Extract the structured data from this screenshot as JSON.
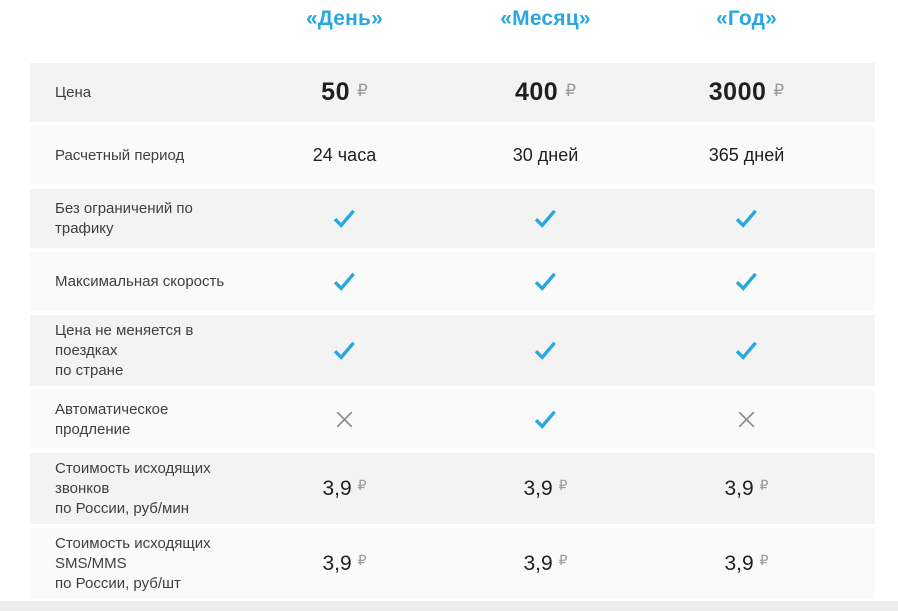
{
  "colors": {
    "accent": "#29a8e0",
    "row_dark": "#f3f3f3",
    "row_light": "#fafafa",
    "label_text": "#3f3f3f",
    "value_text": "#1f1f1f",
    "currency_text": "#9b9b9b",
    "cross": "#8a8a8a",
    "bottom_strip": "#ececec"
  },
  "table": {
    "columns": [
      {
        "label": "«День»"
      },
      {
        "label": "«Месяц»"
      },
      {
        "label": "«Год»"
      }
    ],
    "currency_symbol": "₽",
    "rows": [
      {
        "label": "Цена",
        "type": "price-large",
        "values": [
          "50",
          "400",
          "3000"
        ]
      },
      {
        "label": "Расчетный период",
        "type": "text",
        "values": [
          "24 часа",
          "30 дней",
          "365 дней"
        ]
      },
      {
        "label": "Без ограничений по трафику",
        "type": "icons",
        "values": [
          "check",
          "check",
          "check"
        ]
      },
      {
        "label": "Максимальная скорость",
        "type": "icons",
        "values": [
          "check",
          "check",
          "check"
        ]
      },
      {
        "label": "Цена не меняется в поездках\nпо стране",
        "type": "icons",
        "values": [
          "check",
          "check",
          "check"
        ]
      },
      {
        "label": "Автоматическое продление",
        "type": "icons",
        "values": [
          "cross",
          "check",
          "cross"
        ]
      },
      {
        "label": "Стоимость исходящих звонков\nпо России, руб/мин",
        "type": "price-small",
        "values": [
          "3,9",
          "3,9",
          "3,9"
        ]
      },
      {
        "label": "Стоимость исходящих SMS/MMS\nпо России, руб/шт",
        "type": "price-small",
        "values": [
          "3,9",
          "3,9",
          "3,9"
        ]
      }
    ]
  }
}
